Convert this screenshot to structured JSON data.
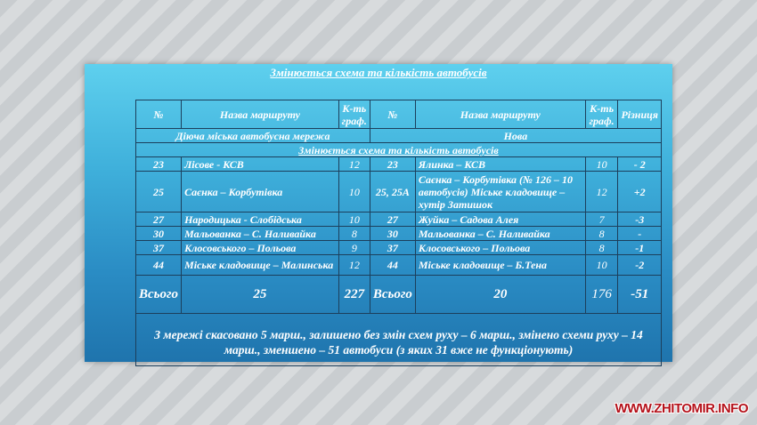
{
  "slide_title": "Змінюється схема та кількість автобусів",
  "headers": {
    "num": "№",
    "name": "Назва маршруту",
    "count": "К-ть граф.",
    "num2": "№",
    "name2": "Назва маршруту",
    "count2": "К-ть граф.",
    "diff": "Різниця"
  },
  "section_left": "Діюча міська автобусна мережа",
  "section_right": "Нова",
  "subsection": "Змінюється схема та кількість автобусів",
  "rows": [
    {
      "n1": "23",
      "name1": "Лісове - КСВ",
      "c1": "12",
      "n2": "23",
      "name2": "Ялинка – КСВ",
      "c2": "10",
      "diff": "- 2"
    },
    {
      "n1": "25",
      "name1": "Саєнка – Корбутівка",
      "c1": "10",
      "n2": "25, 25А",
      "name2": "Саєнка – Корбутівка (№ 126 – 10 автобусів) Міське кладовище – хутір Затишок",
      "c2": "12",
      "diff": "+2"
    },
    {
      "n1": "27",
      "name1": "Народицька - Слобідська",
      "c1": "10",
      "n2": "27",
      "name2": "Жуйка – Садова Алея",
      "c2": "7",
      "diff": "-3"
    },
    {
      "n1": "30",
      "name1": "Мальованка – С. Наливайка",
      "c1": "8",
      "n2": "30",
      "name2": "Мальованка – С. Наливайка",
      "c2": "8",
      "diff": "-"
    },
    {
      "n1": "37",
      "name1": "Клосовського – Польова",
      "c1": "9",
      "n2": "37",
      "name2": "Клосовського – Польова",
      "c2": "8",
      "diff": "-1"
    },
    {
      "n1": "44",
      "name1": "Міське кладовище – Малинська",
      "c1": "12",
      "n2": "44",
      "name2": "Міське кладовище – Б.Тена",
      "c2": "10",
      "diff": "-2"
    }
  ],
  "total": {
    "label": "Всього",
    "routes_old": "25",
    "count_old": "227",
    "label2": "Всього",
    "routes_new": "20",
    "count_new": "176",
    "diff": "-51"
  },
  "note": "З мережі скасовано 5 марш., залишено без змін схем руху – 6 марш., змінено схеми руху – 14 марш., зменшено – 51 автобуси (з яких 31 вже не функціонують)",
  "watermark": "WWW.ZHITOMIR.INFO"
}
